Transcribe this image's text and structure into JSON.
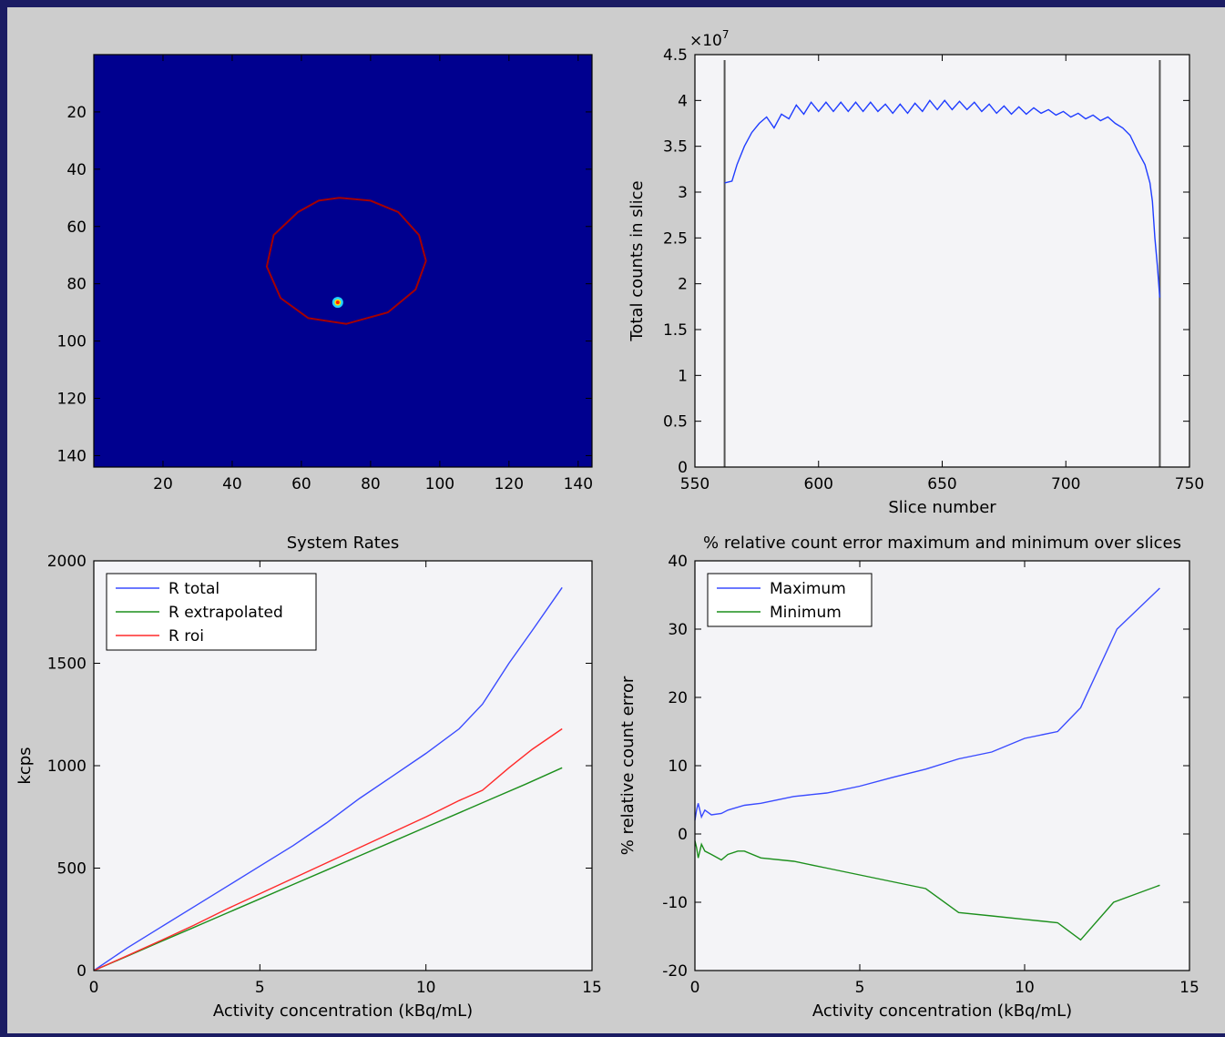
{
  "chart_data": [
    {
      "type": "heatmap",
      "title": "",
      "xlabel": "",
      "ylabel": "",
      "xlim": [
        0,
        144
      ],
      "ylim": [
        144,
        0
      ],
      "xticks": [
        20,
        40,
        60,
        80,
        100,
        120,
        140
      ],
      "yticks": [
        20,
        40,
        60,
        80,
        100,
        120,
        140
      ],
      "background_color": "#00008f",
      "contour": {
        "color": "#a50000",
        "points": [
          [
            71,
            50
          ],
          [
            80,
            51
          ],
          [
            88,
            55
          ],
          [
            94,
            63
          ],
          [
            96,
            72
          ],
          [
            93,
            82
          ],
          [
            85,
            90
          ],
          [
            73,
            94
          ],
          [
            62,
            92
          ],
          [
            54,
            85
          ],
          [
            50,
            74
          ],
          [
            52,
            63
          ],
          [
            59,
            55
          ],
          [
            65,
            51
          ]
        ]
      },
      "hotspot": {
        "x": 70.5,
        "y": 86.5
      }
    },
    {
      "type": "line",
      "title": "",
      "xlabel": "Slice number",
      "ylabel": "Total counts in slice",
      "exponent_label": "×10",
      "exponent_power": "7",
      "xlim": [
        550,
        750
      ],
      "ylim": [
        0,
        4.5
      ],
      "xticks": [
        550,
        600,
        650,
        700,
        750
      ],
      "yticks": [
        0,
        0.5,
        1,
        1.5,
        2,
        2.5,
        3,
        3.5,
        4,
        4.5
      ],
      "vlines": [
        562,
        738
      ],
      "series": [
        {
          "color": "#1f3dff",
          "x": [
            562,
            565,
            567,
            570,
            573,
            576,
            579,
            582,
            585,
            588,
            591,
            594,
            597,
            600,
            603,
            606,
            609,
            612,
            615,
            618,
            621,
            624,
            627,
            630,
            633,
            636,
            639,
            642,
            645,
            648,
            651,
            654,
            657,
            660,
            663,
            666,
            669,
            672,
            675,
            678,
            681,
            684,
            687,
            690,
            693,
            696,
            699,
            702,
            705,
            708,
            711,
            714,
            717,
            720,
            723,
            726,
            729,
            732,
            734,
            735,
            736,
            737,
            738
          ],
          "y": [
            3.1,
            3.12,
            3.3,
            3.5,
            3.65,
            3.75,
            3.82,
            3.7,
            3.85,
            3.8,
            3.95,
            3.85,
            3.98,
            3.88,
            3.98,
            3.88,
            3.98,
            3.88,
            3.98,
            3.88,
            3.98,
            3.88,
            3.96,
            3.86,
            3.96,
            3.86,
            3.97,
            3.88,
            4.0,
            3.9,
            4.0,
            3.9,
            3.99,
            3.9,
            3.98,
            3.88,
            3.96,
            3.86,
            3.94,
            3.85,
            3.93,
            3.85,
            3.92,
            3.86,
            3.9,
            3.84,
            3.88,
            3.82,
            3.86,
            3.8,
            3.84,
            3.78,
            3.82,
            3.75,
            3.7,
            3.62,
            3.45,
            3.3,
            3.1,
            2.9,
            2.5,
            2.2,
            1.85
          ]
        }
      ]
    },
    {
      "type": "line",
      "title": "System Rates",
      "xlabel": "Activity concentration (kBq/mL)",
      "ylabel": "kcps",
      "xlim": [
        0,
        15
      ],
      "ylim": [
        0,
        2000
      ],
      "xticks": [
        0,
        5,
        10,
        15
      ],
      "yticks": [
        0,
        500,
        1000,
        1500,
        2000
      ],
      "legend_position": "top-left",
      "series": [
        {
          "name": "R total",
          "color": "#3a4bff",
          "x": [
            0,
            1,
            2,
            3,
            4,
            5,
            6,
            7,
            8,
            9,
            10,
            11,
            11.7,
            12.5,
            13.2,
            14.1
          ],
          "y": [
            0,
            110,
            210,
            310,
            410,
            510,
            610,
            720,
            840,
            950,
            1060,
            1180,
            1300,
            1500,
            1660,
            1870
          ]
        },
        {
          "name": "R extrapolated",
          "color": "#1c8f1c",
          "x": [
            0,
            1,
            2,
            3,
            4,
            5,
            6,
            7,
            8,
            9,
            10,
            11,
            12,
            13,
            14.1
          ],
          "y": [
            0,
            70,
            140,
            210,
            280,
            350,
            420,
            490,
            560,
            630,
            700,
            770,
            840,
            910,
            990
          ]
        },
        {
          "name": "R roi",
          "color": "#ff2a2a",
          "x": [
            0,
            1,
            2,
            3,
            4,
            5,
            6,
            7,
            8,
            9,
            10,
            11,
            11.7,
            12.5,
            13.2,
            14.1
          ],
          "y": [
            0,
            72,
            145,
            220,
            300,
            375,
            450,
            525,
            600,
            675,
            750,
            830,
            880,
            990,
            1080,
            1180
          ]
        }
      ]
    },
    {
      "type": "line",
      "title": "% relative count error maximum and minimum over slices",
      "xlabel": "Activity concentration (kBq/mL)",
      "ylabel": "% relative count error",
      "xlim": [
        0,
        15
      ],
      "ylim": [
        -20,
        40
      ],
      "xticks": [
        0,
        5,
        10,
        15
      ],
      "yticks": [
        -20,
        -10,
        0,
        10,
        20,
        30,
        40
      ],
      "legend_position": "top-left",
      "series": [
        {
          "name": "Maximum",
          "color": "#3a4bff",
          "x": [
            0,
            0.05,
            0.1,
            0.2,
            0.3,
            0.5,
            0.8,
            1,
            1.5,
            2,
            3,
            4,
            5,
            6,
            7,
            8,
            9,
            10,
            11,
            11.7,
            12.8,
            14.1
          ],
          "y": [
            2,
            3.5,
            4.5,
            2.5,
            3.5,
            2.8,
            3,
            3.5,
            4.2,
            4.5,
            5.5,
            6,
            7,
            8.3,
            9.5,
            11,
            12,
            14,
            15,
            18.5,
            30,
            36
          ]
        },
        {
          "name": "Minimum",
          "color": "#1c8f1c",
          "x": [
            0,
            0.05,
            0.1,
            0.2,
            0.3,
            0.5,
            0.8,
            1,
            1.3,
            1.5,
            2,
            3,
            4,
            5,
            6,
            7,
            8,
            9,
            10,
            11,
            11.7,
            12.7,
            14.1
          ],
          "y": [
            -1,
            -2,
            -3.5,
            -1.5,
            -2.5,
            -3,
            -3.8,
            -3,
            -2.5,
            -2.5,
            -3.5,
            -4,
            -5,
            -6,
            -7,
            -8,
            -11.5,
            -12,
            -12.5,
            -13,
            -15.5,
            -10,
            -7.5
          ]
        }
      ]
    }
  ]
}
